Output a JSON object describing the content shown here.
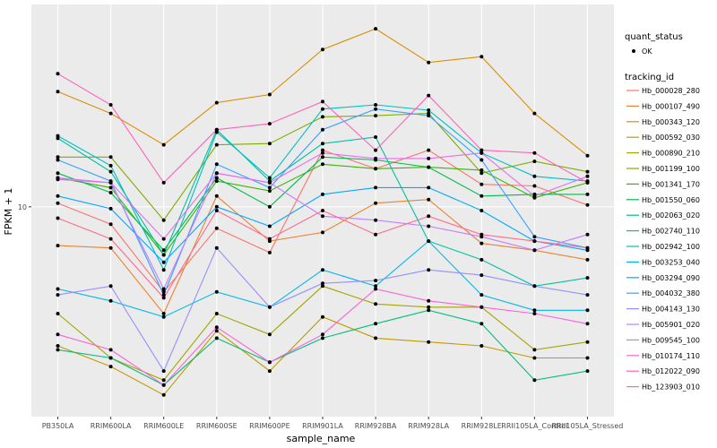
{
  "chart_data": {
    "type": "line",
    "xlabel": "sample_name",
    "ylabel": "FPKM + 1",
    "y_scale": "log10",
    "y_ticks": [
      10
    ],
    "y_range": [
      3.2,
      30
    ],
    "grid": true,
    "legend_placement": "right",
    "categories": [
      "PB350LA",
      "RRIM600LA",
      "RRIM600LE",
      "RRIM600SE",
      "RRIM600PE",
      "RRIM901LA",
      "RRIM928BA",
      "RRIM928LA",
      "RRIM928LE",
      "RRII105LA_Control",
      "RRII105LA_Stressed"
    ],
    "point_legend": {
      "title": "quant_status",
      "label": "OK"
    },
    "series_legend_title": "tracking_id",
    "series": [
      {
        "name": "Hb_000028_280",
        "color": "#F8766D",
        "values": [
          10.2,
          9.1,
          6.3,
          8.9,
          7.8,
          13.6,
          12.3,
          13.6,
          11.3,
          11.2,
          10.1
        ]
      },
      {
        "name": "Hb_000107_490",
        "color": "#EA8331",
        "values": [
          8.1,
          8.0,
          5.6,
          10.6,
          8.3,
          8.7,
          10.2,
          10.4,
          8.2,
          7.9,
          7.5
        ]
      },
      {
        "name": "Hb_000343_120",
        "color": "#D89000",
        "values": [
          18.7,
          16.6,
          14.0,
          17.6,
          18.4,
          23.5,
          26.3,
          21.9,
          22.6,
          16.6,
          13.2
        ]
      },
      {
        "name": "Hb_000592_030",
        "color": "#C09B00",
        "values": [
          4.7,
          4.2,
          3.6,
          5.1,
          4.1,
          5.5,
          4.9,
          4.8,
          4.7,
          4.4,
          4.4
        ]
      },
      {
        "name": "Hb_000890_210",
        "color": "#A3A500",
        "values": [
          5.6,
          4.4,
          3.9,
          5.6,
          5.0,
          6.5,
          5.9,
          5.8,
          5.8,
          4.6,
          4.8
        ]
      },
      {
        "name": "Hb_001199_100",
        "color": "#7CAE00",
        "values": [
          13.1,
          13.1,
          9.3,
          14.0,
          14.1,
          16.3,
          16.4,
          16.6,
          12.0,
          12.8,
          12.1
        ]
      },
      {
        "name": "Hb_001341_170",
        "color": "#39B600",
        "values": [
          11.7,
          11.1,
          7.7,
          11.5,
          10.9,
          12.6,
          12.3,
          12.4,
          12.2,
          10.5,
          11.4
        ]
      },
      {
        "name": "Hb_001550_060",
        "color": "#00BB4E",
        "values": [
          12.0,
          10.8,
          7.9,
          11.7,
          10.0,
          13.1,
          12.9,
          12.4,
          10.6,
          10.7,
          10.7
        ]
      },
      {
        "name": "Hb_002063_020",
        "color": "#00BF7D",
        "values": [
          4.6,
          4.4,
          3.8,
          4.9,
          4.3,
          4.9,
          5.3,
          5.7,
          5.3,
          3.9,
          4.1
        ]
      },
      {
        "name": "Hb_002740_110",
        "color": "#00C1A3",
        "values": [
          14.5,
          12.1,
          7.7,
          15.2,
          11.5,
          14.1,
          14.6,
          8.3,
          7.5,
          6.5,
          6.8
        ]
      },
      {
        "name": "Hb_002942_100",
        "color": "#00BFC4",
        "values": [
          14.7,
          12.5,
          7.1,
          15.0,
          11.7,
          17.0,
          17.4,
          16.9,
          13.4,
          11.8,
          11.5
        ]
      },
      {
        "name": "Hb_003253_040",
        "color": "#00B8E7",
        "values": [
          6.4,
          6.0,
          5.5,
          6.3,
          5.8,
          7.1,
          6.5,
          8.3,
          6.2,
          5.7,
          5.7
        ]
      },
      {
        "name": "Hb_003294_090",
        "color": "#00A9FF",
        "values": [
          10.6,
          9.9,
          7.4,
          10.0,
          9.0,
          10.7,
          11.1,
          11.1,
          9.8,
          8.3,
          7.9
        ]
      },
      {
        "name": "Hb_004032_380",
        "color": "#35A2FF",
        "values": [
          12.9,
          11.5,
          6.2,
          12.6,
          11.1,
          15.2,
          17.0,
          16.4,
          12.9,
          8.5,
          8.0
        ]
      },
      {
        "name": "Hb_004143_130",
        "color": "#9590FF",
        "values": [
          6.2,
          6.5,
          4.1,
          8.0,
          5.8,
          6.6,
          6.7,
          7.1,
          6.9,
          6.5,
          6.2
        ]
      },
      {
        "name": "Hb_005901_020",
        "color": "#C77CFF",
        "values": [
          11.6,
          11.4,
          6.4,
          12.0,
          11.4,
          9.5,
          9.3,
          9.0,
          8.5,
          7.9,
          8.6
        ]
      },
      {
        "name": "Hb_009545_100",
        "color": "#E76BF3",
        "values": [
          11.7,
          11.4,
          8.4,
          12.0,
          11.4,
          13.4,
          13.0,
          13.0,
          13.4,
          10.6,
          11.8
        ]
      },
      {
        "name": "Hb_010174_110",
        "color": "#FA62DB",
        "values": [
          5.0,
          4.6,
          3.8,
          5.2,
          4.3,
          5.0,
          6.4,
          6.0,
          5.8,
          5.6,
          5.3
        ]
      },
      {
        "name": "Hb_012022_090",
        "color": "#FF62BC",
        "values": [
          20.6,
          17.4,
          11.4,
          15.2,
          15.7,
          17.7,
          13.6,
          18.3,
          13.6,
          13.4,
          11.4
        ]
      },
      {
        "name": "Hb_123903_010",
        "color": "#FF6C91",
        "values": [
          9.4,
          8.4,
          6.1,
          9.8,
          8.4,
          9.8,
          8.6,
          9.5,
          8.6,
          8.3,
          8.0
        ]
      }
    ]
  }
}
